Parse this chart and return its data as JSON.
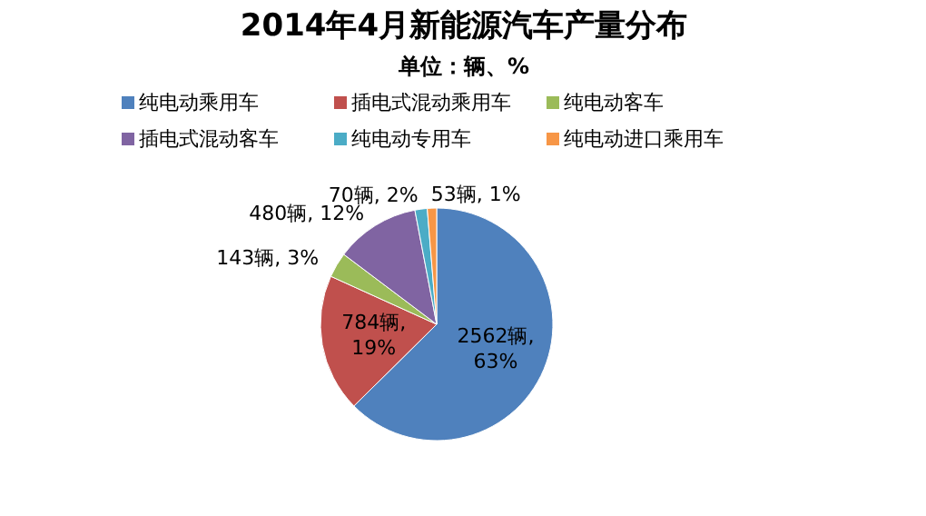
{
  "chart_data": {
    "type": "pie",
    "title": "2014年4月新能源汽车产量分布",
    "subtitle": "单位：辆、%",
    "categories": [
      "纯电动乘用车",
      "插电式混动乘用车",
      "纯电动客车",
      "插电式混动客车",
      "纯电动专用车",
      "纯电动进口乘用车"
    ],
    "values": [
      2562,
      784,
      143,
      480,
      70,
      53
    ],
    "colors": [
      "#4f81bd",
      "#c0504d",
      "#9bbb59",
      "#8064a2",
      "#4bacc6",
      "#f79646"
    ],
    "value_labels": [
      "2562辆, 63%",
      "784辆, 19%",
      "143辆, 3%",
      "480辆, 12%",
      "70辆, 2%",
      "53辆, 1%"
    ],
    "legend": "top"
  }
}
